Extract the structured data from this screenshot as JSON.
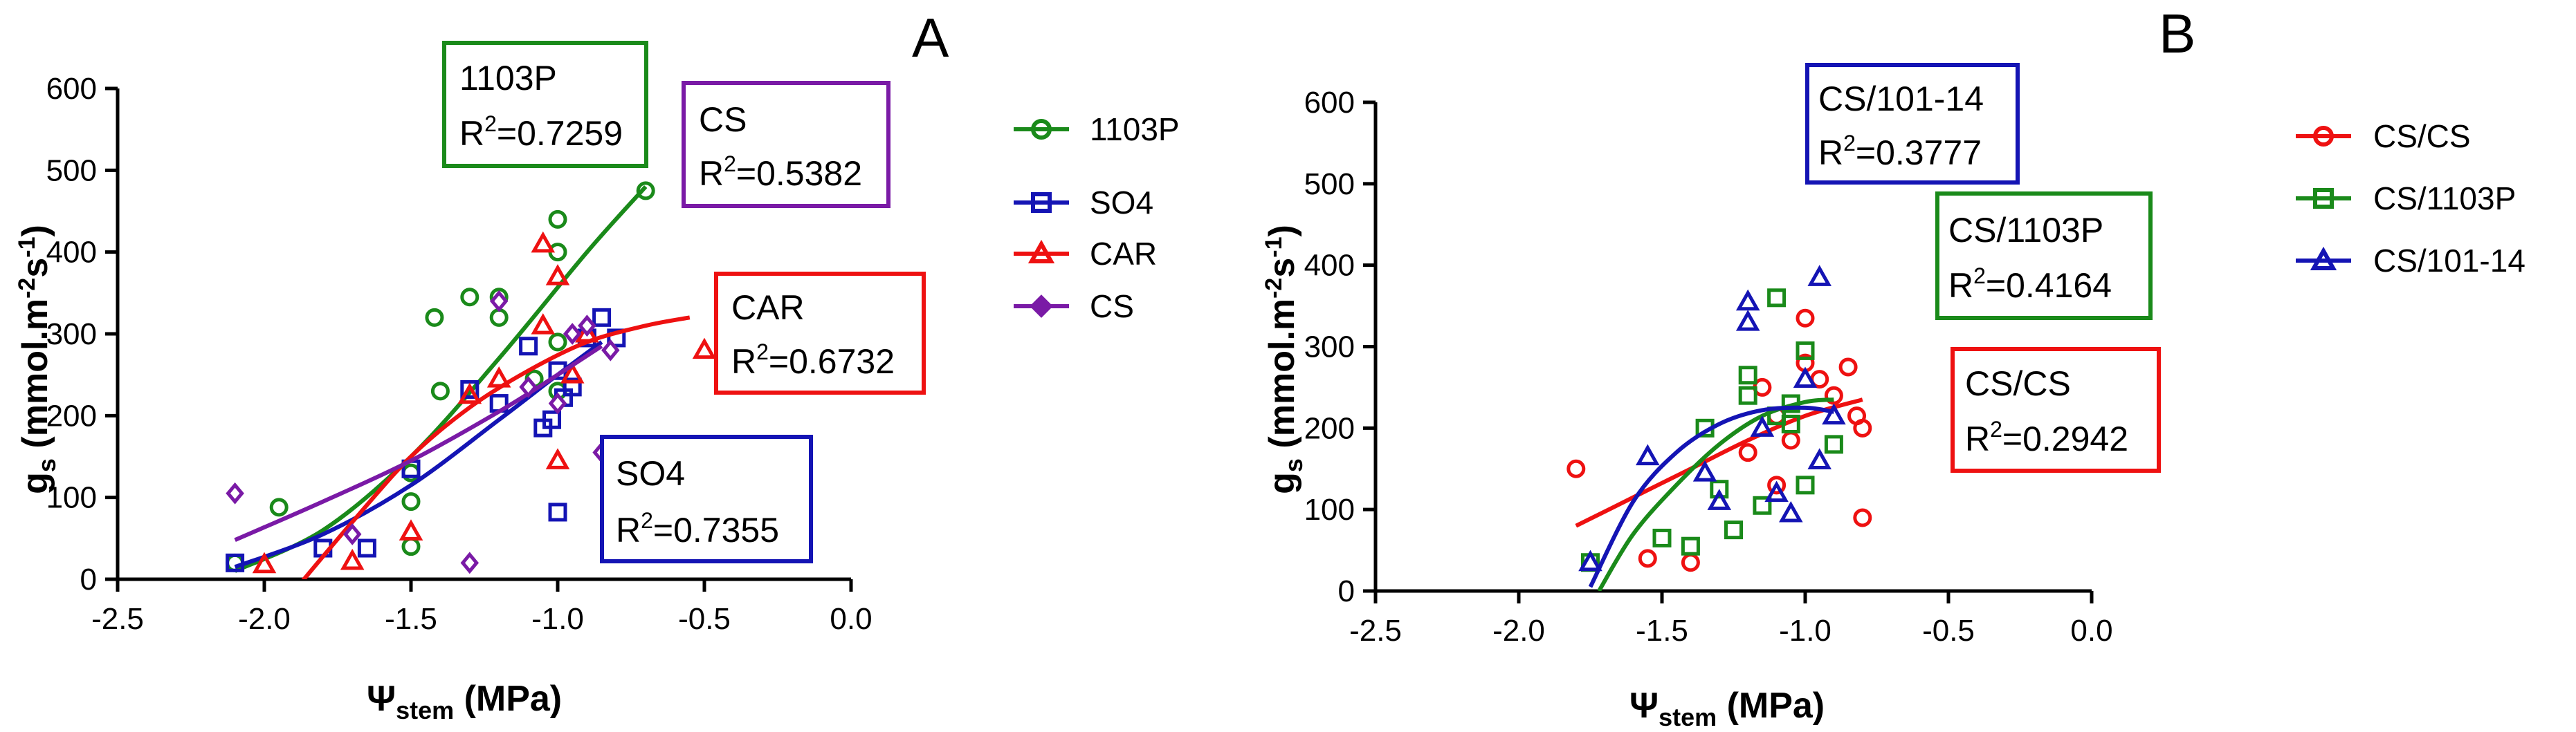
{
  "chart_data": [
    {
      "panel": "A",
      "type": "scatter",
      "xlabel": "Ψstem (MPa)",
      "ylabel": "gs (mmol.m-2s-1)",
      "xlim": [
        -2.5,
        0.0
      ],
      "ylim": [
        0,
        600
      ],
      "xticks": [
        "-2.5",
        "-2.0",
        "-1.5",
        "-1.0",
        "-0.5",
        "0.0"
      ],
      "yticks": [
        "0",
        "100",
        "200",
        "300",
        "400",
        "500",
        "600"
      ],
      "legend_position": "right",
      "series": [
        {
          "name": "1103P",
          "color": "#1a8a1a",
          "marker": "circle",
          "points": [
            [
              -2.1,
              20
            ],
            [
              -1.95,
              88
            ],
            [
              -1.5,
              40
            ],
            [
              -1.5,
              95
            ],
            [
              -1.5,
              130
            ],
            [
              -1.42,
              320
            ],
            [
              -1.4,
              230
            ],
            [
              -1.3,
              345
            ],
            [
              -1.2,
              320
            ],
            [
              -1.2,
              345
            ],
            [
              -1.08,
              245
            ],
            [
              -1.0,
              440
            ],
            [
              -1.0,
              400
            ],
            [
              -1.0,
              290
            ],
            [
              -1.0,
              230
            ],
            [
              -0.7,
              475
            ]
          ],
          "fit": [
            [
              -2.1,
              10
            ],
            [
              -1.8,
              60
            ],
            [
              -1.5,
              150
            ],
            [
              -1.2,
              270
            ],
            [
              -0.9,
              400
            ],
            [
              -0.7,
              480
            ]
          ],
          "r2_label": "1103P",
          "r2_value": "0.7259"
        },
        {
          "name": "SO4",
          "color": "#1414b4",
          "marker": "square",
          "points": [
            [
              -2.1,
              20
            ],
            [
              -1.8,
              38
            ],
            [
              -1.65,
              38
            ],
            [
              -1.5,
              135
            ],
            [
              -1.3,
              232
            ],
            [
              -1.2,
              215
            ],
            [
              -1.1,
              285
            ],
            [
              -1.05,
              185
            ],
            [
              -1.02,
              195
            ],
            [
              -1.0,
              82
            ],
            [
              -1.0,
              255
            ],
            [
              -0.98,
              222
            ],
            [
              -0.95,
              235
            ],
            [
              -0.9,
              295
            ],
            [
              -0.85,
              320
            ],
            [
              -0.8,
              295
            ]
          ],
          "fit": [
            [
              -2.1,
              15
            ],
            [
              -1.8,
              55
            ],
            [
              -1.5,
              115
            ],
            [
              -1.2,
              195
            ],
            [
              -1.0,
              250
            ],
            [
              -0.85,
              290
            ]
          ],
          "r2_label": "SO4",
          "r2_value": "0.7355"
        },
        {
          "name": "CAR",
          "color": "#ee1111",
          "marker": "triangle",
          "points": [
            [
              -2.0,
              18
            ],
            [
              -1.7,
              22
            ],
            [
              -1.5,
              58
            ],
            [
              -1.3,
              225
            ],
            [
              -1.2,
              245
            ],
            [
              -1.05,
              410
            ],
            [
              -1.05,
              310
            ],
            [
              -1.0,
              370
            ],
            [
              -1.0,
              145
            ],
            [
              -0.95,
              250
            ],
            [
              -0.9,
              300
            ],
            [
              -0.5,
              280
            ]
          ],
          "fit": [
            [
              -1.9,
              -15
            ],
            [
              -1.7,
              70
            ],
            [
              -1.5,
              150
            ],
            [
              -1.3,
              210
            ],
            [
              -1.1,
              255
            ],
            [
              -0.9,
              290
            ],
            [
              -0.7,
              310
            ],
            [
              -0.55,
              320
            ]
          ],
          "r2_label": "CAR",
          "r2_value": "0.6732"
        },
        {
          "name": "CS",
          "color": "#7a1aa6",
          "marker": "diamond",
          "points": [
            [
              -2.1,
              105
            ],
            [
              -1.7,
              55
            ],
            [
              -1.3,
              20
            ],
            [
              -1.2,
              340
            ],
            [
              -1.1,
              235
            ],
            [
              -1.0,
              215
            ],
            [
              -0.95,
              300
            ],
            [
              -0.9,
              310
            ],
            [
              -0.85,
              155
            ],
            [
              -0.82,
              280
            ]
          ],
          "fit": [
            [
              -2.1,
              48
            ],
            [
              -1.8,
              95
            ],
            [
              -1.5,
              145
            ],
            [
              -1.2,
              205
            ],
            [
              -1.0,
              250
            ],
            [
              -0.85,
              285
            ]
          ],
          "r2_label": "CS",
          "r2_value": "0.5382"
        }
      ]
    },
    {
      "panel": "B",
      "type": "scatter",
      "xlabel": "Ψstem (MPa)",
      "ylabel": "gs (mmol.m-2s-1)",
      "xlim": [
        -2.5,
        0.0
      ],
      "ylim": [
        0,
        600
      ],
      "xticks": [
        "-2.5",
        "-2.0",
        "-1.5",
        "-1.0",
        "-0.5",
        "0.0"
      ],
      "yticks": [
        "0",
        "100",
        "200",
        "300",
        "400",
        "500",
        "600"
      ],
      "legend_position": "right",
      "series": [
        {
          "name": "CS/CS",
          "color": "#ee1111",
          "marker": "circle",
          "points": [
            [
              -1.8,
              150
            ],
            [
              -1.55,
              40
            ],
            [
              -1.4,
              35
            ],
            [
              -1.2,
              170
            ],
            [
              -1.15,
              250
            ],
            [
              -1.1,
              215
            ],
            [
              -1.05,
              185
            ],
            [
              -1.0,
              335
            ],
            [
              -1.0,
              280
            ],
            [
              -0.95,
              260
            ],
            [
              -0.9,
              240
            ],
            [
              -0.85,
              275
            ],
            [
              -0.82,
              215
            ],
            [
              -0.8,
              200
            ],
            [
              -0.8,
              90
            ],
            [
              -1.1,
              130
            ]
          ],
          "fit": [
            [
              -1.8,
              80
            ],
            [
              -1.6,
              115
            ],
            [
              -1.4,
              150
            ],
            [
              -1.2,
              185
            ],
            [
              -1.0,
              215
            ],
            [
              -0.8,
              235
            ]
          ],
          "r2_label": "CS/CS",
          "r2_value": "0.2942"
        },
        {
          "name": "CS/1103P",
          "color": "#1a8a1a",
          "marker": "square",
          "points": [
            [
              -1.75,
              35
            ],
            [
              -1.5,
              65
            ],
            [
              -1.4,
              55
            ],
            [
              -1.35,
              200
            ],
            [
              -1.3,
              125
            ],
            [
              -1.25,
              75
            ],
            [
              -1.2,
              265
            ],
            [
              -1.2,
              240
            ],
            [
              -1.15,
              105
            ],
            [
              -1.1,
              360
            ],
            [
              -1.1,
              215
            ],
            [
              -1.05,
              230
            ],
            [
              -1.05,
              205
            ],
            [
              -1.0,
              295
            ],
            [
              -1.0,
              130
            ],
            [
              -0.9,
              180
            ]
          ],
          "fit": [
            [
              -1.72,
              0
            ],
            [
              -1.6,
              70
            ],
            [
              -1.45,
              130
            ],
            [
              -1.3,
              180
            ],
            [
              -1.15,
              215
            ],
            [
              -1.0,
              232
            ],
            [
              -0.9,
              235
            ]
          ],
          "r2_label": "CS/1103P",
          "r2_value": "0.4164"
        },
        {
          "name": "CS/101-14",
          "color": "#1414b4",
          "marker": "triangle",
          "points": [
            [
              -1.75,
              35
            ],
            [
              -1.55,
              165
            ],
            [
              -1.35,
              145
            ],
            [
              -1.3,
              110
            ],
            [
              -1.2,
              355
            ],
            [
              -1.2,
              330
            ],
            [
              -1.15,
              200
            ],
            [
              -1.1,
              120
            ],
            [
              -1.05,
              95
            ],
            [
              -1.0,
              260
            ],
            [
              -0.95,
              385
            ],
            [
              -0.95,
              160
            ],
            [
              -0.9,
              215
            ]
          ],
          "fit": [
            [
              -1.75,
              5
            ],
            [
              -1.6,
              110
            ],
            [
              -1.45,
              170
            ],
            [
              -1.3,
              205
            ],
            [
              -1.15,
              222
            ],
            [
              -1.0,
              225
            ],
            [
              -0.9,
              220
            ]
          ],
          "r2_label": "CS/101-14",
          "r2_value": "0.3777"
        }
      ]
    }
  ]
}
